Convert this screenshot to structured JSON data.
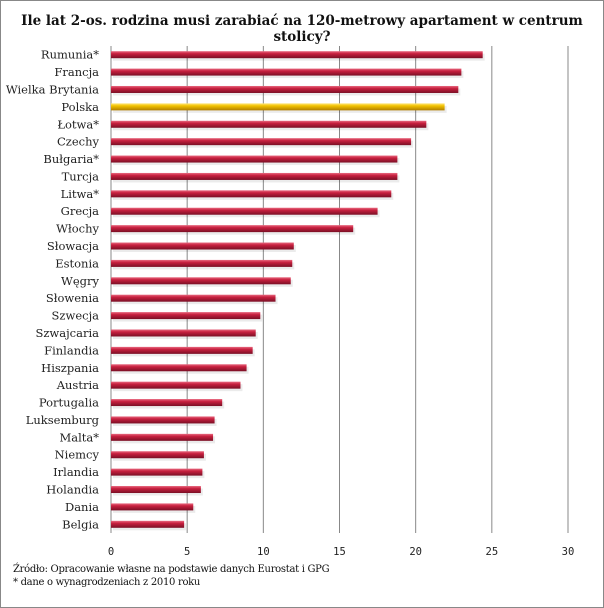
{
  "chart_data": {
    "type": "bar",
    "orientation": "horizontal",
    "title": "Ile lat 2-os. rodzina musi zarabiać na 120-metrowy  apartament w centrum stolicy?",
    "categories": [
      "Rumunia*",
      "Francja",
      "Wielka Brytania",
      "Polska",
      "Łotwa*",
      "Czechy",
      "Bułgaria*",
      "Turcja",
      "Litwa*",
      "Grecja",
      "Włochy",
      "Słowacja",
      "Estonia",
      "Węgry",
      "Słowenia",
      "Szwecja",
      "Szwajcaria",
      "Finlandia",
      "Hiszpania",
      "Austria",
      "Portugalia",
      "Luksemburg",
      "Malta*",
      "Niemcy",
      "Irlandia",
      "Holandia",
      "Dania",
      "Belgia"
    ],
    "values": [
      24.4,
      23.0,
      22.8,
      21.9,
      20.7,
      19.7,
      18.8,
      18.8,
      18.4,
      17.5,
      15.9,
      12.0,
      11.9,
      11.8,
      10.8,
      9.8,
      9.5,
      9.3,
      8.9,
      8.5,
      7.3,
      6.8,
      6.7,
      6.1,
      6.0,
      5.9,
      5.4,
      4.8
    ],
    "highlight": "Polska",
    "xlim": [
      0,
      30
    ],
    "xticks": [
      "0",
      "5",
      "10",
      "15",
      "20",
      "25",
      "30"
    ],
    "grid": true,
    "colors": {
      "bar": "#c8203f",
      "bar_dark": "#7a0f25",
      "highlight": "#f2c200",
      "highlight_dark": "#b07d00",
      "grid": "#888888"
    }
  },
  "footnotes": {
    "source": "Źródło: Opracowanie własne na podstawie danych Eurostat i GPG",
    "note": "* dane o wynagrodzeniach z 2010 roku"
  }
}
